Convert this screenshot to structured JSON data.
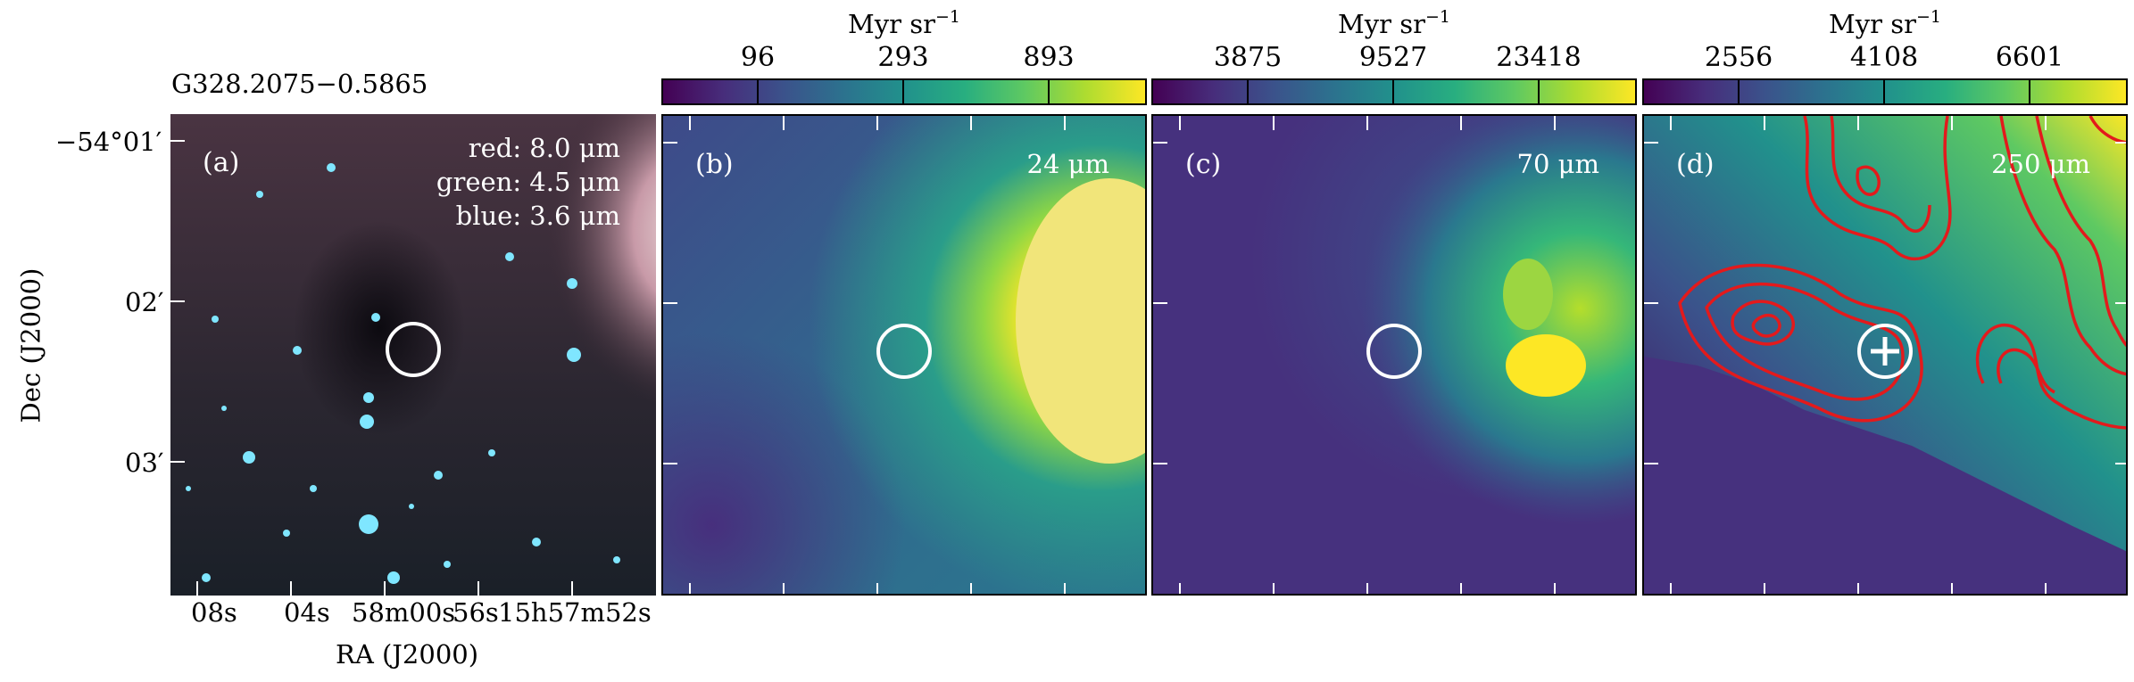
{
  "source_name": "G328.2075−0.5865",
  "axes": {
    "xlabel": "RA (J2000)",
    "ylabel": "Dec (J2000)",
    "ra_ticks": [
      "08s",
      "04s",
      "58m00s",
      "56s",
      "15h57m52s"
    ],
    "dec_ticks": [
      "−54°01′",
      "02′",
      "03′"
    ]
  },
  "panels": [
    {
      "label": "(a)",
      "legend": [
        "red: 8.0 μm",
        "green: 4.5 μm",
        "blue: 3.6 μm"
      ]
    },
    {
      "label": "(b)",
      "wavelength": "24 μm",
      "colorbar": {
        "unit": "Myr sr",
        "exp": "−1",
        "ticks": [
          "96",
          "293",
          "893"
        ]
      }
    },
    {
      "label": "(c)",
      "wavelength": "70 μm",
      "colorbar": {
        "unit": "Myr sr",
        "exp": "−1",
        "ticks": [
          "3875",
          "9527",
          "23418"
        ]
      }
    },
    {
      "label": "(d)",
      "wavelength": "250 μm",
      "colorbar": {
        "unit": "Myr sr",
        "exp": "−1",
        "ticks": [
          "2556",
          "4108",
          "6601"
        ]
      }
    }
  ],
  "colors": {
    "viridis_dark": "#440154",
    "viridis_mid": "#21918c",
    "viridis_yellow": "#fde725",
    "contour": "#e31a1c",
    "marker": "#ffffff"
  }
}
